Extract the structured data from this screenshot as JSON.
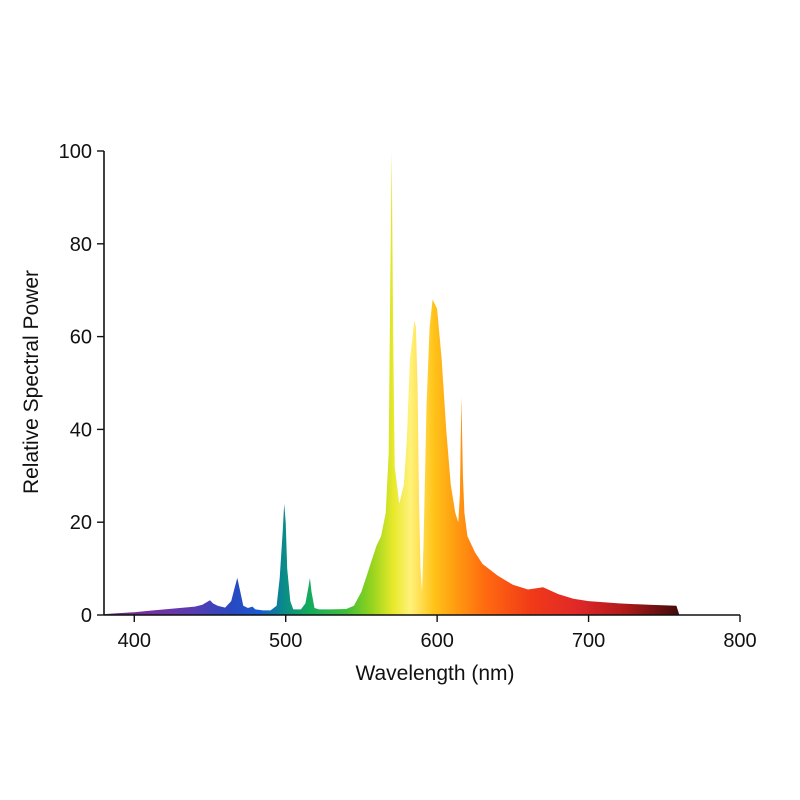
{
  "chart_data": {
    "type": "area",
    "title": "",
    "xlabel": "Wavelength (nm)",
    "ylabel": "Relative Spectral Power",
    "xlim": [
      380,
      800
    ],
    "ylim": [
      0,
      100
    ],
    "x_ticks": [
      400,
      500,
      600,
      700,
      800
    ],
    "x_tick_labels": [
      "400",
      "500",
      "600",
      "700",
      "800"
    ],
    "y_ticks": [
      0,
      20,
      40,
      60,
      80,
      100
    ],
    "y_tick_labels": [
      "0",
      "20",
      "40",
      "60",
      "80",
      "100"
    ],
    "grid": false,
    "fill": "visible-spectrum gradient",
    "series": [
      {
        "x": [
          380,
          390,
          400,
          410,
          420,
          430,
          440,
          445,
          448,
          450,
          452,
          455,
          460,
          464,
          466,
          468,
          470,
          472,
          475,
          478,
          480,
          485,
          490,
          494,
          496,
          498,
          499,
          500,
          501,
          503,
          505,
          510,
          513,
          515,
          516,
          517,
          519,
          522,
          530,
          540,
          545,
          550,
          553,
          556,
          560,
          563,
          566,
          568,
          569,
          570,
          571,
          572,
          575,
          578,
          580,
          582,
          585,
          586,
          587,
          588,
          589,
          590,
          591,
          593,
          595,
          597,
          600,
          603,
          606,
          609,
          612,
          614,
          615,
          616,
          617,
          618,
          620,
          625,
          630,
          640,
          650,
          660,
          670,
          680,
          690,
          700,
          720,
          740,
          758,
          760
        ],
        "y": [
          0.2,
          0.4,
          0.6,
          0.9,
          1.2,
          1.5,
          1.8,
          2.2,
          2.8,
          3.2,
          2.5,
          2.0,
          1.6,
          3.0,
          5.5,
          8.0,
          5.0,
          2.0,
          1.5,
          1.8,
          1.2,
          1.0,
          1.0,
          2.0,
          8.0,
          18.0,
          24.0,
          20.0,
          10.0,
          3.0,
          1.2,
          1.2,
          2.5,
          6.0,
          8.0,
          5.0,
          1.5,
          1.2,
          1.2,
          1.3,
          2.0,
          5.0,
          8.0,
          11.0,
          15.0,
          17.0,
          22.0,
          35.0,
          70.0,
          100.0,
          60.0,
          32.0,
          24.0,
          28.0,
          38.0,
          55.0,
          63.5,
          62.0,
          50.0,
          25.0,
          10.0,
          5.0,
          15.0,
          45.0,
          62.0,
          68.0,
          66.0,
          55.0,
          40.0,
          28.0,
          22.0,
          20.0,
          26.0,
          47.0,
          30.0,
          22.0,
          17.0,
          13.5,
          11.0,
          8.5,
          6.5,
          5.5,
          6.0,
          4.5,
          3.5,
          3.0,
          2.5,
          2.2,
          2.0,
          0
        ]
      }
    ]
  }
}
